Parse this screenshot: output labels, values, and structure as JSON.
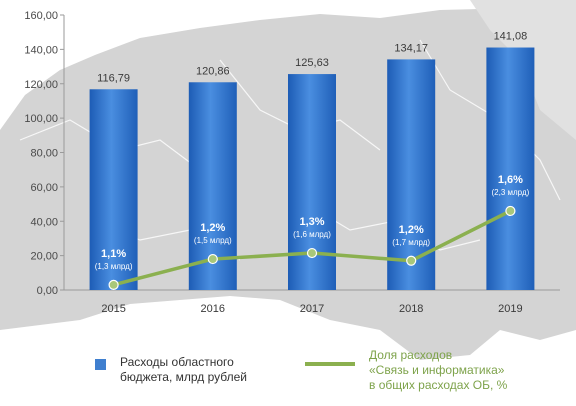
{
  "chart_data": {
    "type": "bar",
    "categories": [
      "2015",
      "2016",
      "2017",
      "2018",
      "2019"
    ],
    "ylim": [
      0,
      160
    ],
    "yticks": [
      "0,00",
      "20,00",
      "40,00",
      "60,00",
      "80,00",
      "100,00",
      "120,00",
      "140,00",
      "160,00"
    ],
    "series": [
      {
        "name": "Расходы областного бюджета, млрд рублей",
        "type": "bar",
        "values": [
          116.79,
          120.86,
          125.63,
          134.17,
          141.08
        ],
        "labels": [
          "116,79",
          "120,86",
          "125,63",
          "134,17",
          "141,08"
        ],
        "color": "#2f6fc6"
      },
      {
        "name": "Доля расходов «Связь и информатика» в общих расходах ОБ, %",
        "type": "line",
        "values": [
          1.1,
          1.2,
          1.3,
          1.2,
          1.6
        ],
        "labels": [
          "1,1%",
          "1,2%",
          "1,3%",
          "1,2%",
          "1,6%"
        ],
        "sublabels": [
          "(1,3 млрд)",
          "(1,5 млрд)",
          "(1,6 млрд)",
          "(1,7 млрд)",
          "(2,3 млрд)"
        ],
        "plotted_on_left_axis": [
          3,
          18,
          21.5,
          17,
          46
        ],
        "color": "#8bb04f"
      }
    ],
    "grid": false
  },
  "legend": {
    "bars_lines": [
      "Расходы областного",
      "бюджета, млрд рублей"
    ],
    "line_lines": [
      "Доля расходов",
      "«Связь и информатика»",
      "в общих расходах ОБ, %"
    ]
  }
}
